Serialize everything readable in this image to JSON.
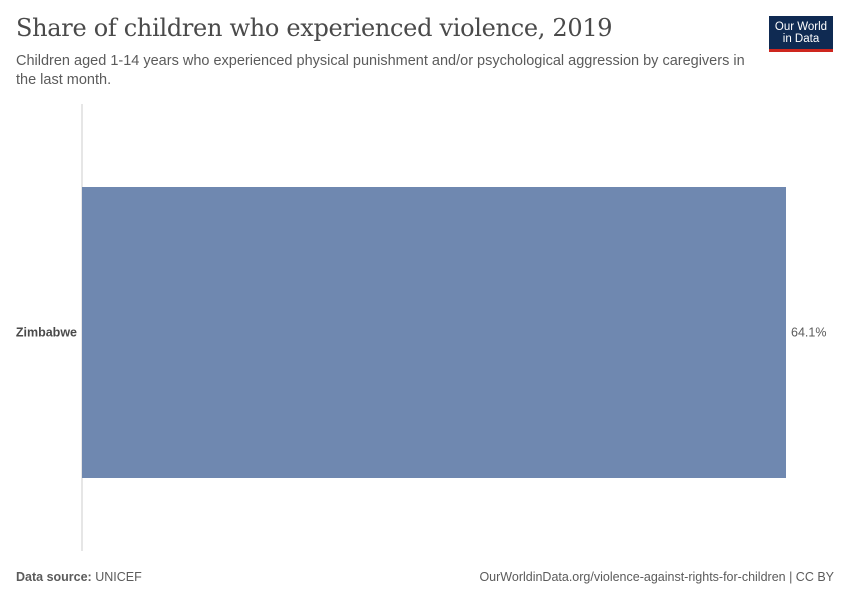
{
  "header": {
    "title": "Share of children who experienced violence, 2019",
    "subtitle": "Children aged 1-14 years who experienced physical punishment and/or psychological aggression by caregivers in the last month.",
    "logo_line1": "Our World",
    "logo_line2": "in Data"
  },
  "footer": {
    "source_label": "Data source:",
    "source_value": "UNICEF",
    "url_license": "OurWorldinData.org/violence-against-rights-for-children | CC BY"
  },
  "colors": {
    "bar": "#6f88b0",
    "axis": "#cccccc",
    "logo_bg": "#0f2a52",
    "logo_accent": "#ce261e"
  },
  "chart_data": {
    "type": "bar",
    "orientation": "horizontal",
    "title": "Share of children who experienced violence, 2019",
    "categories": [
      "Zimbabwe"
    ],
    "values": [
      64.1
    ],
    "value_labels": [
      "64.1%"
    ],
    "unit": "%",
    "xlim": [
      0,
      64.1
    ],
    "xlabel": "",
    "ylabel": ""
  }
}
